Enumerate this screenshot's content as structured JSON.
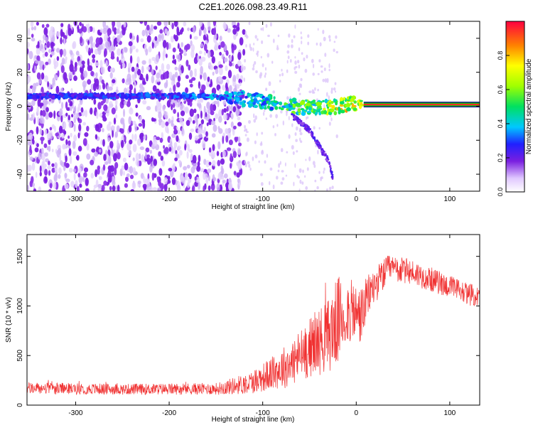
{
  "title": "C2E1.2026.098.23.49.R11",
  "colors": {
    "background": "#ffffff",
    "snr_line": "#f03030",
    "track_center": "#ff2a2a",
    "track_edge": "#00d000"
  },
  "chart_data": [
    {
      "type": "heatmap",
      "xlabel": "Height of straight line (km)",
      "ylabel": "Frequency (Hz)",
      "xlim": [
        -352,
        132
      ],
      "ylim": [
        -50,
        50
      ],
      "xticks": [
        -300,
        -200,
        -100,
        0,
        100
      ],
      "yticks": [
        -40,
        -20,
        0,
        20,
        40
      ],
      "colorbar": {
        "label": "Normalized spectral amplitude",
        "range": [
          0.0,
          1.0
        ],
        "ticks": [
          "0.0",
          "0.2",
          "0.4",
          "0.6",
          "0.8"
        ],
        "tick_values": [
          0.0,
          0.2,
          0.4,
          0.6,
          0.8
        ]
      },
      "features": {
        "noise_region_x": [
          -352,
          -120
        ],
        "track": [
          {
            "x": -352,
            "f": 6,
            "amp": 0.3
          },
          {
            "x": -240,
            "f": 6,
            "amp": 0.3
          },
          {
            "x": -175,
            "f": 6,
            "amp": 0.35
          },
          {
            "x": -130,
            "f": 5,
            "amp": 0.4
          },
          {
            "x": -100,
            "f": 3,
            "amp": 0.45
          },
          {
            "x": -70,
            "f": 0,
            "amp": 0.55
          },
          {
            "x": -40,
            "f": -1,
            "amp": 0.6
          },
          {
            "x": -20,
            "f": 0,
            "amp": 0.75
          },
          {
            "x": 0,
            "f": 2,
            "amp": 0.8
          },
          {
            "x": 8,
            "f": 1,
            "amp": 0.9
          },
          {
            "x": 132,
            "f": 1,
            "amp": 0.9
          }
        ],
        "branch": [
          {
            "x": -70,
            "f": -5
          },
          {
            "x": -50,
            "f": -14
          },
          {
            "x": -30,
            "f": -32
          },
          {
            "x": -25,
            "f": -42
          }
        ]
      }
    },
    {
      "type": "line",
      "xlabel": "Height of straight line (km)",
      "ylabel": "SNR (10 * v/v)",
      "xlim": [
        -352,
        132
      ],
      "ylim": [
        0,
        1720
      ],
      "xticks": [
        -300,
        -200,
        -100,
        0,
        100
      ],
      "yticks": [
        0,
        500,
        1000,
        1500
      ],
      "series": [
        {
          "name": "SNR",
          "envelope": [
            {
              "x": -352,
              "mean": 170,
              "amp": 60
            },
            {
              "x": -250,
              "mean": 160,
              "amp": 55
            },
            {
              "x": -150,
              "mean": 165,
              "amp": 60
            },
            {
              "x": -115,
              "mean": 220,
              "amp": 110
            },
            {
              "x": -90,
              "mean": 320,
              "amp": 170
            },
            {
              "x": -70,
              "mean": 420,
              "amp": 240
            },
            {
              "x": -50,
              "mean": 580,
              "amp": 300
            },
            {
              "x": -30,
              "mean": 700,
              "amp": 380
            },
            {
              "x": -20,
              "mean": 850,
              "amp": 450
            },
            {
              "x": -8,
              "mean": 950,
              "amp": 330
            },
            {
              "x": 5,
              "mean": 900,
              "amp": 300
            },
            {
              "x": 15,
              "mean": 1150,
              "amp": 200
            },
            {
              "x": 35,
              "mean": 1380,
              "amp": 140
            },
            {
              "x": 60,
              "mean": 1340,
              "amp": 130
            },
            {
              "x": 90,
              "mean": 1230,
              "amp": 120
            },
            {
              "x": 132,
              "mean": 1080,
              "amp": 110
            }
          ]
        }
      ]
    }
  ]
}
